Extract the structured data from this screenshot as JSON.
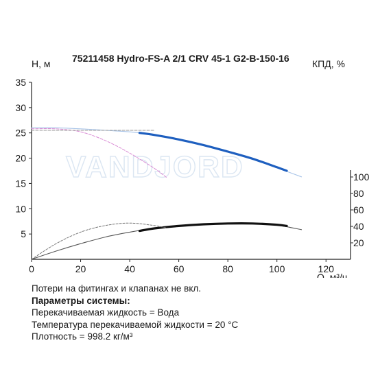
{
  "chart_data": {
    "type": "line",
    "title": "75211458 Hydro-FS-A 2/1 CRV 45-1 G2-B-150-16",
    "ylabel": "Н, м",
    "y2label": "КПД, %",
    "xlabel": "Q, м³/ч",
    "watermark": "VANDJORD",
    "xlim": [
      0,
      130
    ],
    "ylim": [
      0,
      35
    ],
    "y2lim": [
      0,
      100
    ],
    "x_ticks": [
      "0",
      "20",
      "40",
      "60",
      "80",
      "100",
      "120"
    ],
    "y_ticks": [
      "5",
      "10",
      "15",
      "20",
      "25",
      "30",
      "35"
    ],
    "y2_ticks": [
      "20",
      "40",
      "60",
      "80",
      "100"
    ],
    "grid": false,
    "series": [
      {
        "axis": "left",
        "color": "#a8c4e8",
        "style": "thin",
        "x": [
          0,
          10,
          20,
          30,
          40,
          50,
          60,
          70,
          80,
          90,
          100,
          110
        ],
        "y": [
          26.0,
          26.0,
          25.8,
          25.5,
          25.2,
          24.6,
          23.7,
          22.6,
          21.3,
          19.9,
          18.1,
          16.3
        ]
      },
      {
        "axis": "left",
        "color": "#1e5fbf",
        "style": "thick",
        "x": [
          44,
          50,
          60,
          70,
          80,
          90,
          100,
          104
        ],
        "y": [
          25.0,
          24.6,
          23.7,
          22.6,
          21.3,
          19.9,
          18.2,
          17.5
        ]
      },
      {
        "axis": "left",
        "color": "#d98ad4",
        "style": "dashed",
        "x": [
          0,
          10,
          20,
          30,
          40,
          50,
          55
        ],
        "y": [
          25.8,
          25.8,
          25.2,
          23.5,
          21.0,
          18.0,
          16.2
        ]
      },
      {
        "axis": "left",
        "color": "#999999",
        "style": "dashed",
        "x": [
          0,
          10,
          20,
          30,
          40,
          50
        ],
        "y": [
          25.5,
          25.5,
          25.5,
          25.5,
          25.5,
          25.5
        ]
      },
      {
        "axis": "right",
        "color": "#555555",
        "style": "thin",
        "x": [
          0,
          10,
          20,
          30,
          40,
          50,
          60,
          70,
          80,
          90,
          100,
          110
        ],
        "y": [
          0,
          10,
          19,
          27,
          33,
          38,
          41,
          43,
          44,
          43.5,
          41.5,
          36
        ]
      },
      {
        "axis": "right",
        "color": "#111111",
        "style": "thick",
        "x": [
          44,
          50,
          60,
          70,
          80,
          90,
          100,
          104
        ],
        "y": [
          34.5,
          37.5,
          40.5,
          42.5,
          43.5,
          43.5,
          42,
          40.5
        ]
      },
      {
        "axis": "right",
        "color": "#777777",
        "style": "thin-dashed",
        "x": [
          0,
          10,
          20,
          30,
          40,
          50,
          55
        ],
        "y": [
          0,
          19,
          33,
          41,
          44,
          41,
          38
        ]
      }
    ]
  },
  "notes": {
    "line1": "Потери на фитингах и клапанах не вкл.",
    "line2": "Параметры системы:",
    "line3": "Перекачиваемая жидкость = Вода",
    "line4": "Температура перекачиваемой жидкости = 20 °C",
    "line5": "Плотность = 998.2 кг/м³"
  }
}
